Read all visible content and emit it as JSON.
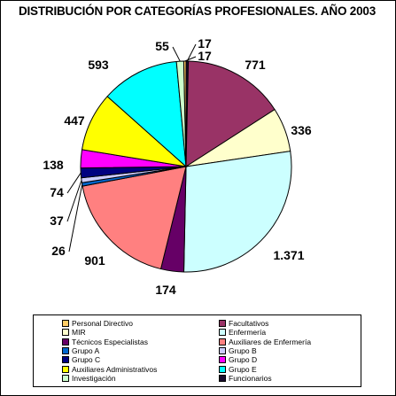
{
  "chart_data": {
    "type": "pie",
    "title": "DISTRIBUCIÓN POR CATEGORÍAS PROFESIONALES. AÑO 2003",
    "slices": [
      {
        "name": "Funcionarios",
        "value": 17,
        "label": "17",
        "color": "#1a0d2e"
      },
      {
        "name": "Facultativos",
        "value": 771,
        "label": "771",
        "color": "#993366"
      },
      {
        "name": "MIR",
        "value": 336,
        "label": "336",
        "color": "#ffffcc"
      },
      {
        "name": "Enfermería",
        "value": 1371,
        "label": "1.371",
        "color": "#ccffff"
      },
      {
        "name": "Técnicos Especialistas",
        "value": 174,
        "label": "174",
        "color": "#660066"
      },
      {
        "name": "Auxiliares de Enfermería",
        "value": 901,
        "label": "901",
        "color": "#ff8080"
      },
      {
        "name": "Grupo A",
        "value": 26,
        "label": "26",
        "color": "#0066cc"
      },
      {
        "name": "Grupo B",
        "value": 37,
        "label": "37",
        "color": "#ccccff"
      },
      {
        "name": "Grupo C",
        "value": 74,
        "label": "74",
        "color": "#000080"
      },
      {
        "name": "Grupo D",
        "value": 138,
        "label": "138",
        "color": "#ff00ff"
      },
      {
        "name": "Auxiliares Administrativos",
        "value": 447,
        "label": "447",
        "color": "#ffff00"
      },
      {
        "name": "Grupo E",
        "value": 593,
        "label": "593",
        "color": "#00ffff"
      },
      {
        "name": "Investigación",
        "value": 55,
        "label": "55",
        "color": "#ccffcc"
      },
      {
        "name": "Personal Directivo",
        "value": 17,
        "label": "17",
        "color": "#ffcc66"
      }
    ],
    "legend": [
      {
        "name": "Personal Directivo",
        "color": "#ffcc66"
      },
      {
        "name": "Facultativos",
        "color": "#993366"
      },
      {
        "name": "MIR",
        "color": "#ffffcc"
      },
      {
        "name": "Enfermería",
        "color": "#ccffff"
      },
      {
        "name": "Técnicos Especialistas",
        "color": "#660066"
      },
      {
        "name": "Auxiliares de Enfermería",
        "color": "#ff8080"
      },
      {
        "name": "Grupo A",
        "color": "#0066cc"
      },
      {
        "name": "Grupo B",
        "color": "#ccccff"
      },
      {
        "name": "Grupo C",
        "color": "#000080"
      },
      {
        "name": "Grupo D",
        "color": "#ff00ff"
      },
      {
        "name": "Auxiliares Administrativos",
        "color": "#ffff00"
      },
      {
        "name": "Grupo E",
        "color": "#00ffff"
      },
      {
        "name": "Investigación",
        "color": "#ccffcc"
      },
      {
        "name": "Funcionarios",
        "color": "#1a0d2e"
      }
    ],
    "legend_position": "bottom"
  }
}
